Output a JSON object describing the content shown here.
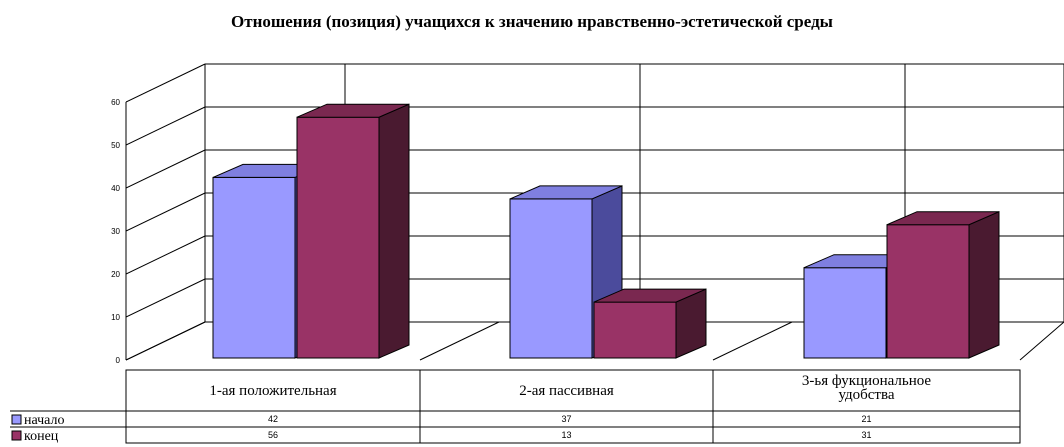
{
  "chart_data": {
    "type": "bar",
    "title": "Отношения (позиция) учащихся к значению нравственно-эстетической среды",
    "categories": [
      "1-ая положительная",
      "2-ая пассивная",
      "3-ья фукциональное удобства"
    ],
    "series": [
      {
        "name": "начало",
        "values": [
          42,
          37,
          21
        ],
        "color": "#9999FF",
        "side_color": "#4B4B9C",
        "top_color": "#7F7FE0"
      },
      {
        "name": "конец",
        "values": [
          56,
          13,
          31
        ],
        "color": "#993366",
        "side_color": "#4A1A30",
        "top_color": "#7A2850"
      }
    ],
    "yticks": [
      "0",
      "10",
      "20",
      "30",
      "40",
      "50",
      "60"
    ],
    "ylim": [
      0,
      60
    ],
    "grid": true,
    "legend": "table-left",
    "data_table": true
  }
}
